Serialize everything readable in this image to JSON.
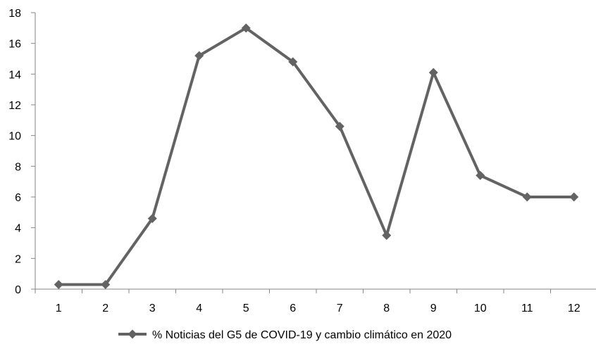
{
  "chart_data": {
    "type": "line",
    "categories": [
      "1",
      "2",
      "3",
      "4",
      "5",
      "6",
      "7",
      "8",
      "9",
      "10",
      "11",
      "12"
    ],
    "y_ticks": [
      "0",
      "2",
      "4",
      "6",
      "8",
      "10",
      "12",
      "14",
      "16",
      "18"
    ],
    "ylim": [
      0,
      18
    ],
    "grid": false,
    "legend_position": "bottom",
    "series": [
      {
        "name": "% Noticias del G5 de COVID-19 y cambio climático en 2020",
        "values": [
          0.3,
          0.3,
          4.6,
          15.2,
          17.0,
          14.8,
          10.6,
          3.5,
          14.1,
          7.4,
          6.0,
          6.0
        ],
        "color": "#636363",
        "marker": "diamond"
      }
    ]
  }
}
